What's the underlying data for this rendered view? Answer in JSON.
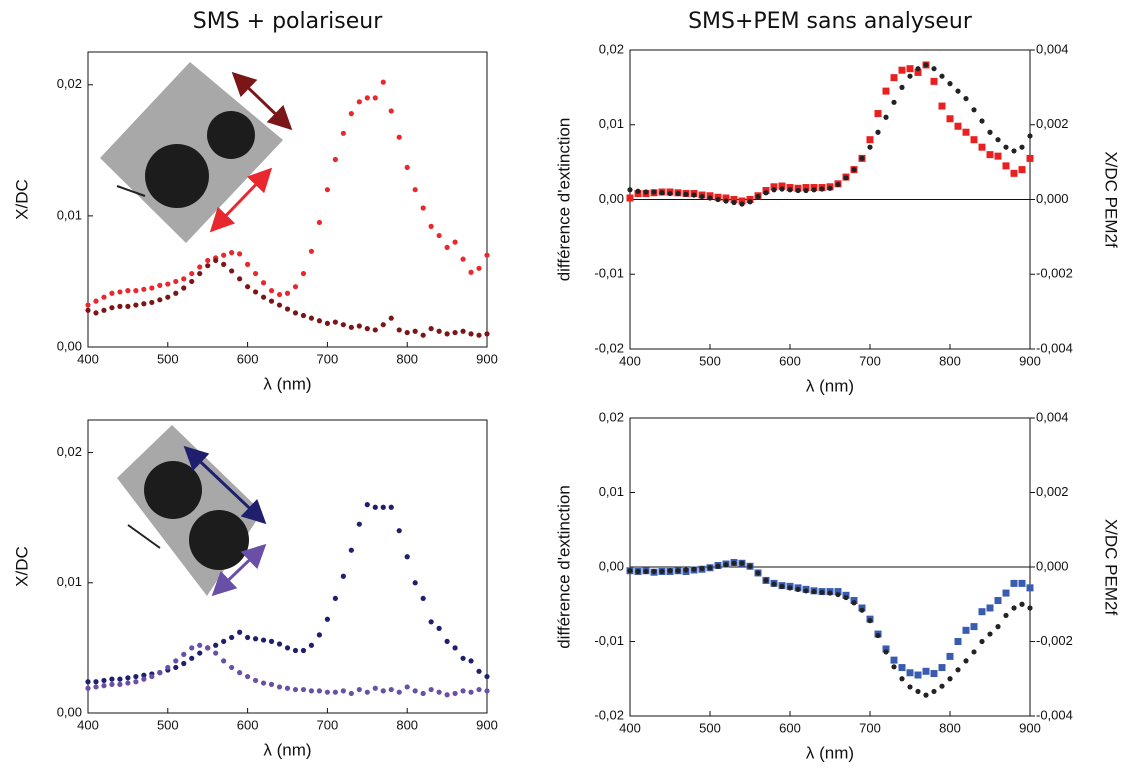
{
  "chart_data": [
    {
      "type": "scatter",
      "title": "SMS + polariseur",
      "xlabel": "λ (nm)",
      "ylabel": "X/DC",
      "xlim": [
        400,
        900
      ],
      "ylim": [
        0,
        0.0225
      ],
      "xticks": [
        400,
        500,
        600,
        700,
        800,
        900
      ],
      "yticks": [
        {
          "value": 0,
          "label": "0,00"
        },
        {
          "value": 0.01,
          "label": "0,01"
        },
        {
          "value": 0.02,
          "label": "0,02"
        }
      ],
      "x": [
        400,
        410,
        420,
        430,
        440,
        450,
        460,
        470,
        480,
        490,
        500,
        510,
        520,
        530,
        540,
        550,
        560,
        570,
        580,
        590,
        600,
        610,
        620,
        630,
        640,
        650,
        660,
        670,
        680,
        690,
        700,
        710,
        720,
        730,
        740,
        750,
        760,
        770,
        780,
        790,
        800,
        810,
        820,
        830,
        840,
        850,
        860,
        870,
        880,
        890,
        900
      ],
      "series": [
        {
          "color": "#e8282e",
          "marker": "circle",
          "values": [
            0.0032,
            0.0035,
            0.0038,
            0.0041,
            0.0042,
            0.0043,
            0.0043,
            0.0044,
            0.0045,
            0.0047,
            0.0048,
            0.005,
            0.0052,
            0.0056,
            0.0061,
            0.0066,
            0.0068,
            0.007,
            0.0072,
            0.0071,
            0.0063,
            0.0056,
            0.0049,
            0.0043,
            0.004,
            0.0041,
            0.0046,
            0.0056,
            0.0073,
            0.0095,
            0.012,
            0.0143,
            0.0163,
            0.0178,
            0.0187,
            0.019,
            0.019,
            0.0202,
            0.018,
            0.016,
            0.0137,
            0.012,
            0.0106,
            0.0092,
            0.0085,
            0.0076,
            0.008,
            0.0067,
            0.0057,
            0.006,
            0.007
          ]
        },
        {
          "color": "#7a1518",
          "marker": "circle",
          "values": [
            0.0028,
            0.0026,
            0.0028,
            0.003,
            0.0031,
            0.0031,
            0.0032,
            0.0033,
            0.0034,
            0.0036,
            0.0038,
            0.0041,
            0.0045,
            0.005,
            0.0056,
            0.0062,
            0.0066,
            0.0063,
            0.0058,
            0.0052,
            0.0046,
            0.0042,
            0.0038,
            0.0035,
            0.0032,
            0.0029,
            0.0026,
            0.0024,
            0.0022,
            0.002,
            0.0018,
            0.0019,
            0.0017,
            0.0015,
            0.0016,
            0.0014,
            0.0013,
            0.0017,
            0.0022,
            0.0013,
            0.0011,
            0.0012,
            0.0009,
            0.0014,
            0.0012,
            0.001,
            0.0011,
            0.0012,
            0.001,
            0.0009,
            0.001
          ]
        }
      ]
    },
    {
      "type": "scatter",
      "title": "SMS+PEM sans analyseur",
      "xlabel": "λ (nm)",
      "ylabel": "différence d'extinction",
      "y2label": "X/DC PEM2f",
      "xlim": [
        400,
        900
      ],
      "ylim": [
        -0.02,
        0.02
      ],
      "y2lim": [
        -0.004,
        0.004
      ],
      "zeroline": true,
      "xticks": [
        400,
        500,
        600,
        700,
        800,
        900
      ],
      "yticks": [
        {
          "value": -0.02,
          "label": "-0,02"
        },
        {
          "value": -0.01,
          "label": "-0,01"
        },
        {
          "value": 0,
          "label": "0,00"
        },
        {
          "value": 0.01,
          "label": "0,01"
        },
        {
          "value": 0.02,
          "label": "0,02"
        }
      ],
      "y2ticks": [
        {
          "value": -0.004,
          "label": "-0,004"
        },
        {
          "value": -0.002,
          "label": "-0,002"
        },
        {
          "value": 0,
          "label": "0,000"
        },
        {
          "value": 0.002,
          "label": "0,002"
        },
        {
          "value": 0.004,
          "label": "0,004"
        }
      ],
      "x": [
        400,
        410,
        420,
        430,
        440,
        450,
        460,
        470,
        480,
        490,
        500,
        510,
        520,
        530,
        540,
        550,
        560,
        570,
        580,
        590,
        600,
        610,
        620,
        630,
        640,
        650,
        660,
        670,
        680,
        690,
        700,
        710,
        720,
        730,
        740,
        750,
        760,
        770,
        780,
        790,
        800,
        810,
        820,
        830,
        840,
        850,
        860,
        870,
        880,
        890,
        900
      ],
      "series": [
        {
          "color": "#e82020",
          "marker": "square",
          "values": [
            0.0002,
            0.0008,
            0.0008,
            0.0009,
            0.001,
            0.001,
            0.0009,
            0.0008,
            0.0008,
            0.0006,
            0.0005,
            0.0003,
            0.0002,
            0.0,
            -0.0002,
            0.0,
            0.0005,
            0.0012,
            0.0017,
            0.0018,
            0.0016,
            0.0015,
            0.0016,
            0.0016,
            0.0016,
            0.0017,
            0.0021,
            0.003,
            0.004,
            0.0055,
            0.008,
            0.0115,
            0.0145,
            0.0163,
            0.0173,
            0.0175,
            0.017,
            0.018,
            0.0158,
            0.0125,
            0.0108,
            0.0098,
            0.009,
            0.008,
            0.007,
            0.006,
            0.0058,
            0.0045,
            0.0035,
            0.004,
            0.0055
          ]
        },
        {
          "color": "#222222",
          "marker": "circle",
          "axis": "y2",
          "values": [
            0.00026,
            0.00022,
            0.0002,
            0.0002,
            0.00018,
            0.00016,
            0.00016,
            0.00014,
            0.00012,
            8e-05,
            4e-05,
            0.0,
            -4e-05,
            -8e-05,
            -0.00012,
            -6e-05,
            8e-05,
            0.00018,
            0.00026,
            0.00028,
            0.00026,
            0.00024,
            0.00024,
            0.00026,
            0.00028,
            0.0003,
            0.0004,
            0.00058,
            0.0008,
            0.0011,
            0.0014,
            0.0018,
            0.0022,
            0.0026,
            0.003,
            0.0033,
            0.0035,
            0.0036,
            0.0035,
            0.0033,
            0.0031,
            0.0029,
            0.0027,
            0.0024,
            0.0021,
            0.0018,
            0.0016,
            0.0014,
            0.0013,
            0.0014,
            0.0017
          ]
        }
      ]
    },
    {
      "type": "scatter",
      "xlabel": "λ (nm)",
      "ylabel": "X/DC",
      "xlim": [
        400,
        900
      ],
      "ylim": [
        0,
        0.0225
      ],
      "xticks": [
        400,
        500,
        600,
        700,
        800,
        900
      ],
      "yticks": [
        {
          "value": 0,
          "label": "0,00"
        },
        {
          "value": 0.01,
          "label": "0,01"
        },
        {
          "value": 0.02,
          "label": "0,02"
        }
      ],
      "x": [
        400,
        410,
        420,
        430,
        440,
        450,
        460,
        470,
        480,
        490,
        500,
        510,
        520,
        530,
        540,
        550,
        560,
        570,
        580,
        590,
        600,
        610,
        620,
        630,
        640,
        650,
        660,
        670,
        680,
        690,
        700,
        710,
        720,
        730,
        740,
        750,
        760,
        770,
        780,
        790,
        800,
        810,
        820,
        830,
        840,
        850,
        860,
        870,
        880,
        890,
        900
      ],
      "series": [
        {
          "color": "#1f1f6e",
          "marker": "circle",
          "values": [
            0.0024,
            0.0024,
            0.0025,
            0.0026,
            0.0026,
            0.0027,
            0.0028,
            0.0029,
            0.003,
            0.0031,
            0.0033,
            0.0035,
            0.0038,
            0.0042,
            0.0046,
            0.005,
            0.0052,
            0.0055,
            0.0058,
            0.0062,
            0.0058,
            0.0057,
            0.0056,
            0.0055,
            0.0053,
            0.005,
            0.0048,
            0.0048,
            0.0052,
            0.006,
            0.0072,
            0.0088,
            0.0105,
            0.0125,
            0.0145,
            0.016,
            0.0158,
            0.0158,
            0.0158,
            0.014,
            0.012,
            0.01,
            0.0088,
            0.007,
            0.0065,
            0.0055,
            0.005,
            0.0042,
            0.004,
            0.0032,
            0.0028
          ]
        },
        {
          "color": "#6a4fa6",
          "marker": "circle",
          "values": [
            0.0019,
            0.002,
            0.0021,
            0.0022,
            0.0022,
            0.0023,
            0.0024,
            0.0026,
            0.0028,
            0.0031,
            0.0035,
            0.004,
            0.0045,
            0.005,
            0.0052,
            0.005,
            0.0046,
            0.004,
            0.0035,
            0.0031,
            0.0028,
            0.0025,
            0.0023,
            0.0022,
            0.002,
            0.0019,
            0.0018,
            0.0018,
            0.0017,
            0.0017,
            0.0016,
            0.0016,
            0.0017,
            0.0015,
            0.0018,
            0.0016,
            0.0019,
            0.0017,
            0.0018,
            0.0016,
            0.002,
            0.0017,
            0.0015,
            0.0018,
            0.0016,
            0.0014,
            0.0015,
            0.0017,
            0.0016,
            0.0018,
            0.0017
          ]
        }
      ]
    },
    {
      "type": "scatter",
      "xlabel": "λ (nm)",
      "ylabel": "différence d'extinction",
      "y2label": "X/DC PEM2f",
      "xlim": [
        400,
        900
      ],
      "ylim": [
        -0.02,
        0.02
      ],
      "y2lim": [
        -0.004,
        0.004
      ],
      "zeroline": true,
      "xticks": [
        400,
        500,
        600,
        700,
        800,
        900
      ],
      "yticks": [
        {
          "value": -0.02,
          "label": "-0,02"
        },
        {
          "value": -0.01,
          "label": "-0,01"
        },
        {
          "value": 0,
          "label": "0,00"
        },
        {
          "value": 0.01,
          "label": "0,01"
        },
        {
          "value": 0.02,
          "label": "0,02"
        }
      ],
      "y2ticks": [
        {
          "value": -0.004,
          "label": "-0,004"
        },
        {
          "value": -0.002,
          "label": "-0,002"
        },
        {
          "value": 0,
          "label": "0,000"
        },
        {
          "value": 0.002,
          "label": "0,002"
        },
        {
          "value": 0.004,
          "label": "0,004"
        }
      ],
      "x": [
        400,
        410,
        420,
        430,
        440,
        450,
        460,
        470,
        480,
        490,
        500,
        510,
        520,
        530,
        540,
        550,
        560,
        570,
        580,
        590,
        600,
        610,
        620,
        630,
        640,
        650,
        660,
        670,
        680,
        690,
        700,
        710,
        720,
        730,
        740,
        750,
        760,
        770,
        780,
        790,
        800,
        810,
        820,
        830,
        840,
        850,
        860,
        870,
        880,
        890,
        900
      ],
      "series": [
        {
          "color": "#3a5cb0",
          "marker": "square",
          "values": [
            -0.0005,
            -0.0006,
            -0.0005,
            -0.0007,
            -0.0006,
            -0.0006,
            -0.0005,
            -0.0006,
            -0.0004,
            -0.0003,
            -0.0001,
            0.0002,
            0.0004,
            0.0006,
            0.0005,
            0.0001,
            -0.0008,
            -0.0018,
            -0.0022,
            -0.0025,
            -0.0026,
            -0.0028,
            -0.003,
            -0.0032,
            -0.0033,
            -0.0033,
            -0.0033,
            -0.0038,
            -0.0045,
            -0.0055,
            -0.007,
            -0.009,
            -0.011,
            -0.0125,
            -0.0135,
            -0.0142,
            -0.0145,
            -0.014,
            -0.0143,
            -0.0135,
            -0.012,
            -0.01,
            -0.0085,
            -0.008,
            -0.006,
            -0.0055,
            -0.0045,
            -0.0035,
            -0.0022,
            -0.0022,
            -0.0028
          ]
        },
        {
          "color": "#222222",
          "marker": "circle",
          "axis": "y2",
          "values": [
            -0.0001,
            -0.00012,
            -0.00012,
            -0.00012,
            -0.00012,
            -0.0001,
            -0.0001,
            -8e-05,
            -6e-05,
            -4e-05,
            -2e-05,
            2e-05,
            6e-05,
            0.0001,
            0.0001,
            2e-05,
            -0.00016,
            -0.00036,
            -0.00046,
            -0.00052,
            -0.00056,
            -0.0006,
            -0.00064,
            -0.00066,
            -0.00068,
            -0.0007,
            -0.00074,
            -0.00082,
            -0.00096,
            -0.00116,
            -0.00144,
            -0.00184,
            -0.00228,
            -0.00268,
            -0.003,
            -0.00322,
            -0.00334,
            -0.00344,
            -0.00334,
            -0.0032,
            -0.003,
            -0.00276,
            -0.00252,
            -0.00228,
            -0.002,
            -0.0018,
            -0.0016,
            -0.0013,
            -0.0011,
            -0.001,
            -0.0011
          ]
        }
      ]
    }
  ]
}
